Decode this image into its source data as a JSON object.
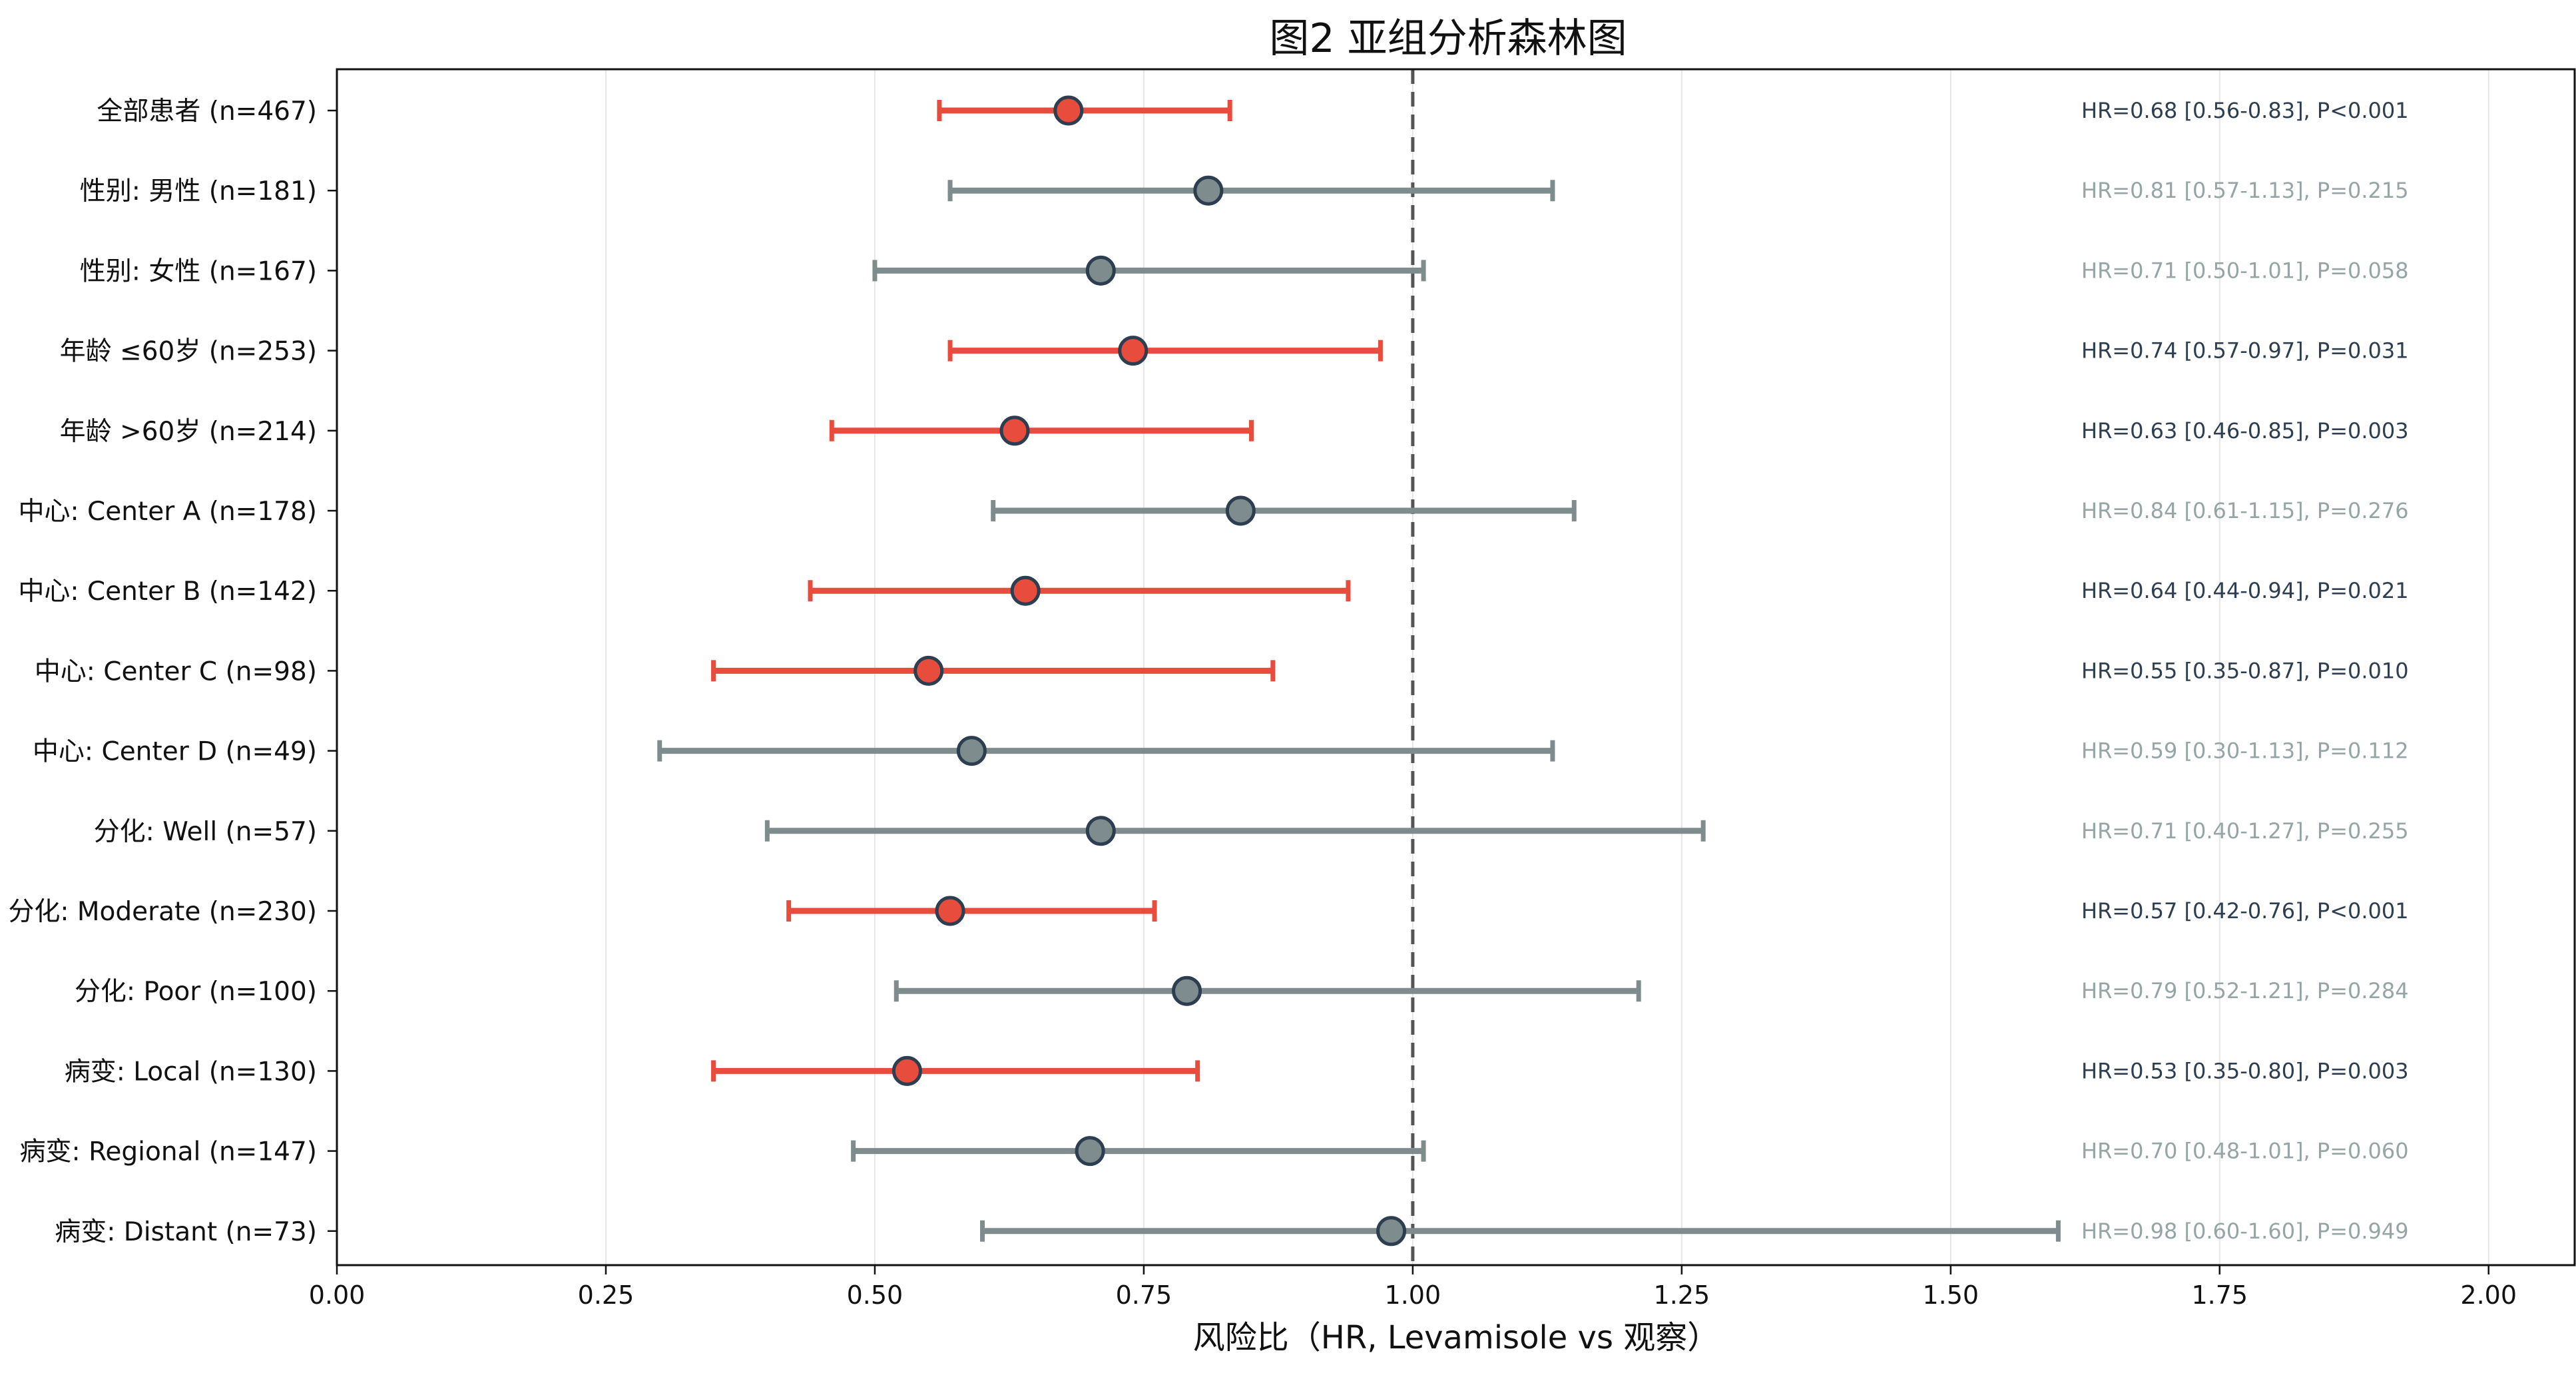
{
  "chart_data": {
    "type": "forest",
    "title": "图2 亚组分析森林图",
    "xlabel": "风险比（HR, Levamisole vs 观察）",
    "ylabel": "",
    "xlim": [
      0.0,
      2.08
    ],
    "xticks": [
      "0.00",
      "0.25",
      "0.50",
      "0.75",
      "1.00",
      "1.25",
      "1.50",
      "1.75",
      "2.00"
    ],
    "reference_line": 1.0,
    "grid": "vertical",
    "colors": {
      "significant": "#e74c3c",
      "non_significant": "#7f8c8d",
      "marker_edge": "#2c3e50",
      "annotation_significant": "#2c3e50",
      "annotation_non_significant": "#95a5a6",
      "reference": "#555555",
      "grid": "#e6e6e6"
    },
    "rows": [
      {
        "label": "全部患者 (n=467)",
        "hr": 0.68,
        "lo": 0.56,
        "hi": 0.83,
        "significant": true,
        "annotation": "HR=0.68 [0.56-0.83], P<0.001"
      },
      {
        "label": "性别: 男性 (n=181)",
        "hr": 0.81,
        "lo": 0.57,
        "hi": 1.13,
        "significant": false,
        "annotation": "HR=0.81 [0.57-1.13], P=0.215"
      },
      {
        "label": "性别: 女性 (n=167)",
        "hr": 0.71,
        "lo": 0.5,
        "hi": 1.01,
        "significant": false,
        "annotation": "HR=0.71 [0.50-1.01], P=0.058"
      },
      {
        "label": "年龄 ≤60岁 (n=253)",
        "hr": 0.74,
        "lo": 0.57,
        "hi": 0.97,
        "significant": true,
        "annotation": "HR=0.74 [0.57-0.97], P=0.031"
      },
      {
        "label": "年龄 >60岁 (n=214)",
        "hr": 0.63,
        "lo": 0.46,
        "hi": 0.85,
        "significant": true,
        "annotation": "HR=0.63 [0.46-0.85], P=0.003"
      },
      {
        "label": "中心: Center A (n=178)",
        "hr": 0.84,
        "lo": 0.61,
        "hi": 1.15,
        "significant": false,
        "annotation": "HR=0.84 [0.61-1.15], P=0.276"
      },
      {
        "label": "中心: Center B (n=142)",
        "hr": 0.64,
        "lo": 0.44,
        "hi": 0.94,
        "significant": true,
        "annotation": "HR=0.64 [0.44-0.94], P=0.021"
      },
      {
        "label": "中心: Center C (n=98)",
        "hr": 0.55,
        "lo": 0.35,
        "hi": 0.87,
        "significant": true,
        "annotation": "HR=0.55 [0.35-0.87], P=0.010"
      },
      {
        "label": "中心: Center D (n=49)",
        "hr": 0.59,
        "lo": 0.3,
        "hi": 1.13,
        "significant": false,
        "annotation": "HR=0.59 [0.30-1.13], P=0.112"
      },
      {
        "label": "分化: Well (n=57)",
        "hr": 0.71,
        "lo": 0.4,
        "hi": 1.27,
        "significant": false,
        "annotation": "HR=0.71 [0.40-1.27], P=0.255"
      },
      {
        "label": "分化: Moderate (n=230)",
        "hr": 0.57,
        "lo": 0.42,
        "hi": 0.76,
        "significant": true,
        "annotation": "HR=0.57 [0.42-0.76], P<0.001"
      },
      {
        "label": "分化: Poor (n=100)",
        "hr": 0.79,
        "lo": 0.52,
        "hi": 1.21,
        "significant": false,
        "annotation": "HR=0.79 [0.52-1.21], P=0.284"
      },
      {
        "label": "病变: Local (n=130)",
        "hr": 0.53,
        "lo": 0.35,
        "hi": 0.8,
        "significant": true,
        "annotation": "HR=0.53 [0.35-0.80], P=0.003"
      },
      {
        "label": "病变: Regional (n=147)",
        "hr": 0.7,
        "lo": 0.48,
        "hi": 1.01,
        "significant": false,
        "annotation": "HR=0.70 [0.48-1.01], P=0.060"
      },
      {
        "label": "病变: Distant (n=73)",
        "hr": 0.98,
        "lo": 0.6,
        "hi": 1.6,
        "significant": false,
        "annotation": "HR=0.98 [0.60-1.60], P=0.949"
      }
    ]
  }
}
